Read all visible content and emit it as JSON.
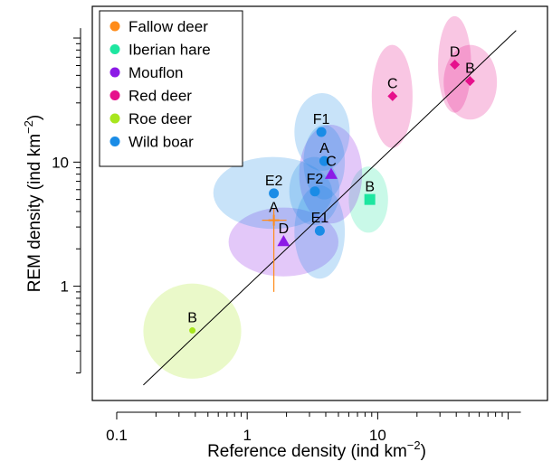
{
  "chart_data": {
    "type": "scatter",
    "x_scale": "log",
    "y_scale": "log",
    "xlabel_main": "Reference density (ind km",
    "xlabel_exp": "−2",
    "xlabel_close": ")",
    "ylabel_main": "REM density (ind km",
    "ylabel_exp": "−2",
    "ylabel_close": ")",
    "xlim": [
      0.065,
      200
    ],
    "ylim": [
      0.12,
      180
    ],
    "x_ticks": [
      0.1,
      1,
      10
    ],
    "x_tick_labels": [
      "0.1",
      "1",
      "10"
    ],
    "y_ticks": [
      1,
      10
    ],
    "y_tick_labels": [
      "1",
      "10"
    ],
    "grid": false,
    "legend_position": "top-left",
    "reference_line": {
      "type": "identity",
      "x_range": [
        0.16,
        115
      ]
    },
    "series": [
      {
        "name": "Fallow deer",
        "color": "#ff8c1a",
        "marker": "cross",
        "points": [
          {
            "label": "A",
            "x": 1.6,
            "y": 3.4,
            "err_x": [
              1.3,
              2.0
            ],
            "err_y": [
              0.9,
              4.2
            ]
          }
        ]
      },
      {
        "name": "Iberian hare",
        "color": "#1ee6a0",
        "marker": "square",
        "points": [
          {
            "label": "B",
            "x": 8.7,
            "y": 5.0,
            "ell_rx": [
              6.0,
              12.0
            ],
            "ell_ry": [
              2.7,
              9.2
            ]
          }
        ]
      },
      {
        "name": "Mouflon",
        "color": "#8c1ae6",
        "marker": "triangle",
        "points": [
          {
            "label": "C",
            "x": 4.4,
            "y": 8.0,
            "ell_rx": [
              2.5,
              7.6
            ],
            "ell_ry": [
              3.2,
              20.0
            ]
          },
          {
            "label": "D",
            "x": 1.9,
            "y": 2.3,
            "ell_rx": [
              0.72,
              5.0
            ],
            "ell_ry": [
              1.2,
              4.3
            ]
          }
        ]
      },
      {
        "name": "Red deer",
        "color": "#e6118c",
        "marker": "diamond",
        "points": [
          {
            "label": "B",
            "x": 51,
            "y": 45,
            "ell_rx": [
              32,
              82
            ],
            "ell_ry": [
              22,
              88
            ]
          },
          {
            "label": "C",
            "x": 13,
            "y": 34,
            "ell_rx": [
              9.0,
              18.5
            ],
            "ell_ry": [
              13.0,
              88
            ]
          },
          {
            "label": "D",
            "x": 39,
            "y": 61,
            "ell_rx": [
              29,
              52
            ],
            "ell_ry": [
              25,
              150
            ]
          }
        ]
      },
      {
        "name": "Roe deer",
        "color": "#a8e61e",
        "marker": "circle-small",
        "points": [
          {
            "label": "B",
            "x": 0.38,
            "y": 0.44,
            "ell_rx": [
              0.16,
              0.9
            ],
            "ell_ry": [
              0.18,
              1.05
            ]
          }
        ]
      },
      {
        "name": "Wild boar",
        "color": "#1a8ce6",
        "marker": "circle",
        "points": [
          {
            "label": "A",
            "x": 3.9,
            "y": 10.2,
            "ell_rx": [
              2.7,
              5.6
            ],
            "ell_ry": [
              5.0,
              20.0
            ]
          },
          {
            "label": "E1",
            "x": 3.6,
            "y": 2.8,
            "ell_rx": [
              2.3,
              5.6
            ],
            "ell_ry": [
              1.15,
              6.5
            ]
          },
          {
            "label": "E2",
            "x": 1.6,
            "y": 5.6,
            "ell_rx": [
              0.55,
              4.5
            ],
            "ell_ry": [
              2.9,
              11.0
            ]
          },
          {
            "label": "F1",
            "x": 3.7,
            "y": 17.5,
            "ell_rx": [
              2.3,
              6.1
            ],
            "ell_ry": [
              8.5,
              36.0
            ]
          },
          {
            "label": "F2",
            "x": 3.3,
            "y": 5.8,
            "ell_rx": [
              2.1,
              5.1
            ],
            "ell_ry": [
              3.1,
              11.0
            ]
          }
        ]
      }
    ]
  }
}
